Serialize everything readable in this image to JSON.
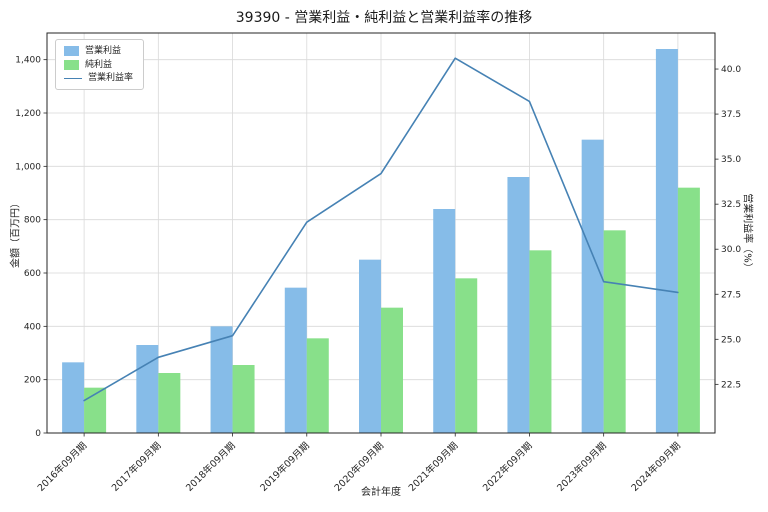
{
  "title": "39390 - 営業利益・純利益と営業利益率の推移",
  "chart_data": {
    "type": "bar",
    "subtype": "grouped-bars-with-line",
    "title": "39390 - 営業利益・純利益と営業利益率の推移",
    "categories": [
      "2016年09月期",
      "2017年09月期",
      "2018年09月期",
      "2019年09月期",
      "2020年09月期",
      "2021年09月期",
      "2022年09月期",
      "2023年09月期",
      "2024年09月期"
    ],
    "series": [
      {
        "name": "営業利益",
        "type": "bar",
        "axis": "left",
        "color": "#86bce8",
        "values": [
          265,
          330,
          400,
          545,
          650,
          840,
          960,
          1100,
          1440
        ]
      },
      {
        "name": "純利益",
        "type": "bar",
        "axis": "left",
        "color": "#88e08a",
        "values": [
          170,
          225,
          255,
          355,
          470,
          580,
          685,
          760,
          920
        ]
      },
      {
        "name": "営業利益率",
        "type": "line",
        "axis": "right",
        "color": "#4682b4",
        "values": [
          21.6,
          24.0,
          25.2,
          31.5,
          34.2,
          40.6,
          38.2,
          28.2,
          27.6
        ]
      }
    ],
    "xlabel": "会計年度",
    "ylabel_left": "金額（百万円）",
    "ylabel_right": "営業利益率（%）",
    "left_axis": {
      "min": 0,
      "max": 1500,
      "ticks": [
        0,
        200,
        400,
        600,
        800,
        1000,
        1200,
        1400
      ]
    },
    "right_axis": {
      "min": 19.8,
      "max": 42.0,
      "ticks": [
        22.5,
        25.0,
        27.5,
        30.0,
        32.5,
        35.0,
        37.5,
        40.0
      ]
    },
    "grid": true,
    "legend_position": "upper left",
    "colors": {
      "grid": "#d9d9d9",
      "spine": "#262626",
      "text": "#262626",
      "background": "#ffffff"
    }
  }
}
